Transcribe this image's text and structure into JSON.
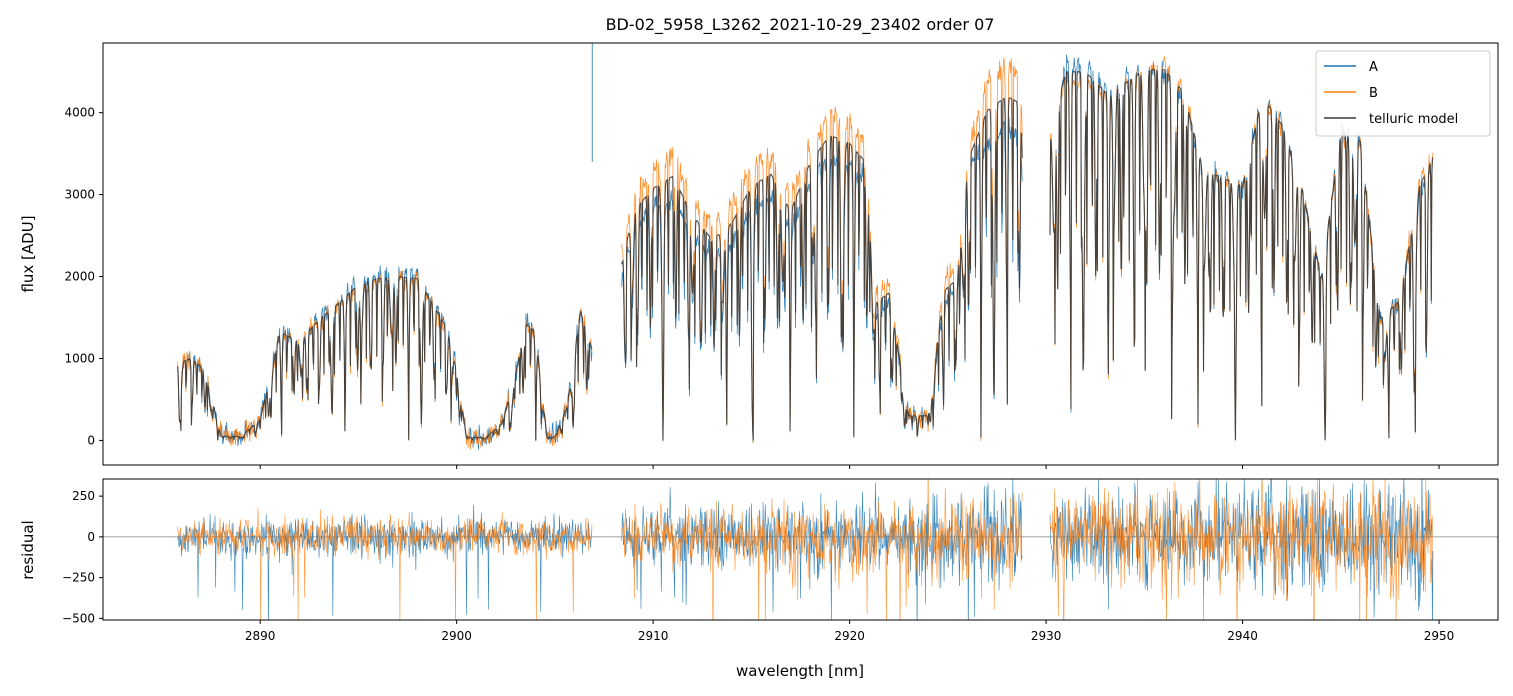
{
  "title": "BD-02_5958_L3262_2021-10-29_23402  order 07",
  "colors": {
    "A": "#1f77b4",
    "B": "#ff7f0e",
    "model": "#3a3a3a",
    "zero": "#808080"
  },
  "chart_data": [
    {
      "type": "line",
      "name": "flux",
      "ylabel": "flux [ADU]",
      "xlim": [
        2882.0,
        2953.0
      ],
      "ylim": [
        -300,
        4850
      ],
      "yticks": [
        0,
        1000,
        2000,
        3000,
        4000
      ],
      "segments": [
        [
          2885.8,
          2906.9
        ],
        [
          2908.4,
          2928.8
        ],
        [
          2930.2,
          2949.7
        ]
      ],
      "series": [
        {
          "name": "A",
          "color": "#1f77b4"
        },
        {
          "name": "B",
          "color": "#ff7f0e"
        },
        {
          "name": "telluric model",
          "color": "#3a3a3a"
        }
      ],
      "envelope": {
        "x": [
          2885.8,
          2886.5,
          2887.2,
          2888.0,
          2889.0,
          2890.0,
          2891.0,
          2892.0,
          2893.0,
          2894.0,
          2895.0,
          2896.0,
          2897.0,
          2898.0,
          2899.0,
          2899.7,
          2900.5,
          2901.5,
          2902.3,
          2903.0,
          2903.5,
          2904.0,
          2904.6,
          2905.0,
          2905.6,
          2906.3,
          2906.9,
          2908.4,
          2909.0,
          2910.0,
          2911.0,
          2912.0,
          2913.0,
          2914.0,
          2915.0,
          2916.0,
          2917.0,
          2918.0,
          2919.0,
          2920.0,
          2920.8,
          2921.3,
          2922.0,
          2923.0,
          2924.0,
          2924.8,
          2925.5,
          2926.0,
          2927.0,
          2928.0,
          2928.8,
          2930.2,
          2931.0,
          2932.0,
          2933.0,
          2934.0,
          2935.0,
          2936.0,
          2937.0,
          2938.0,
          2939.0,
          2940.0,
          2941.0,
          2942.0,
          2943.0,
          2944.0,
          2945.0,
          2946.0,
          2947.0,
          2948.0,
          2949.0,
          2949.7
        ],
        "A": [
          950,
          1000,
          850,
          50,
          50,
          250,
          1350,
          1200,
          1500,
          1700,
          1950,
          2000,
          2050,
          2000,
          1600,
          1300,
          40,
          40,
          200,
          800,
          1450,
          1350,
          40,
          40,
          400,
          1600,
          1100,
          2000,
          2600,
          2850,
          2950,
          2550,
          2250,
          2400,
          2850,
          3000,
          2600,
          3200,
          3450,
          3350,
          3200,
          1550,
          1700,
          300,
          300,
          1650,
          1900,
          3300,
          3650,
          3800,
          3700,
          3600,
          4600,
          4600,
          4300,
          4400,
          4500,
          4500,
          4200,
          3300,
          3200,
          3100,
          4200,
          3900,
          3100,
          2000,
          3800,
          3700,
          1500,
          1700,
          3000,
          3500
        ],
        "B": [
          950,
          1000,
          850,
          50,
          50,
          250,
          1300,
          1200,
          1450,
          1650,
          1850,
          1950,
          1950,
          1950,
          1550,
          1250,
          40,
          40,
          200,
          800,
          1400,
          1300,
          40,
          40,
          400,
          1550,
          1100,
          2300,
          3000,
          3300,
          3500,
          2950,
          2650,
          2900,
          3350,
          3500,
          3000,
          3600,
          4000,
          3900,
          3600,
          1800,
          1900,
          300,
          300,
          2000,
          2050,
          3500,
          4400,
          4600,
          4500,
          3800,
          4400,
          4400,
          4200,
          4300,
          4550,
          4550,
          4300,
          3300,
          3200,
          3100,
          4200,
          3800,
          3100,
          2000,
          3700,
          3600,
          1500,
          1700,
          3200,
          3400
        ]
      }
    },
    {
      "type": "line",
      "name": "residual",
      "ylabel": "residual",
      "xlabel": "wavelength [nm]",
      "xlim": [
        2882.0,
        2953.0
      ],
      "ylim": [
        -510,
        355
      ],
      "yticks": [
        -500,
        -250,
        0,
        250
      ],
      "xticks": [
        2890,
        2900,
        2910,
        2920,
        2930,
        2940,
        2950
      ],
      "scatter_scale": {
        "x": [
          2885.8,
          2895.0,
          2906.9,
          2908.4,
          2915.0,
          2920.0,
          2925.0,
          2928.8,
          2930.2,
          2935.0,
          2940.0,
          2945.0,
          2949.7
        ],
        "sigma": [
          45,
          65,
          50,
          80,
          95,
          100,
          115,
          140,
          130,
          160,
          155,
          150,
          170
        ]
      }
    }
  ],
  "legend": [
    {
      "label": "A",
      "color": "#1f77b4"
    },
    {
      "label": "B",
      "color": "#ff7f0e"
    },
    {
      "label": "telluric model",
      "color": "#3a3a3a"
    }
  ]
}
